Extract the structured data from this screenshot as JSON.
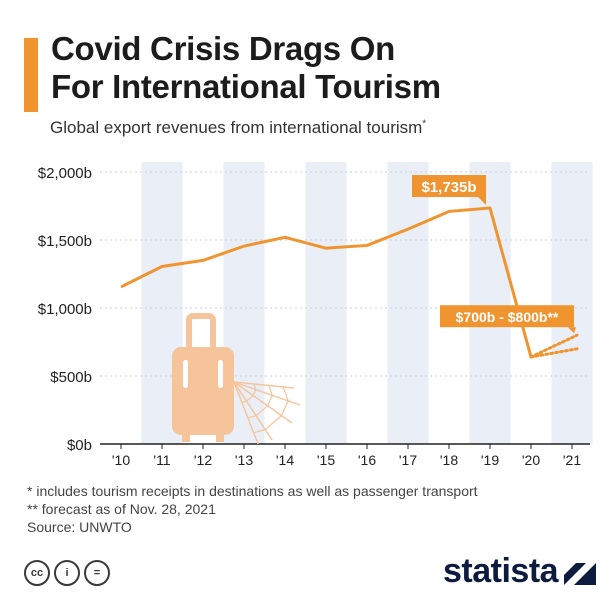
{
  "header": {
    "title_line1": "Covid Crisis Drags On",
    "title_line2": "For International Tourism",
    "subtitle": "Global export revenues from international tourism",
    "subtitle_mark": "*"
  },
  "notes": {
    "note1": "*   includes tourism receipts in destinations as well as passenger transport",
    "note2": "** forecast as of Nov. 28, 2021",
    "source": "Source: UNWTO"
  },
  "branding": {
    "license_icons": [
      "cc-icon",
      "by-icon",
      "nd-icon"
    ],
    "license_labels": [
      "cc",
      "i",
      "="
    ],
    "logo_text": "statista"
  },
  "chart_data": {
    "type": "line",
    "title": "Covid Crisis Drags On For International Tourism",
    "subtitle": "Global export revenues from international tourism*",
    "x": [
      "'10",
      "'11",
      "'12",
      "'13",
      "'14",
      "'15",
      "'16",
      "'17",
      "'18",
      "'19",
      "'20",
      "'21"
    ],
    "series": [
      {
        "values": [
          1155,
          1305,
          1350,
          1455,
          1520,
          1440,
          1460,
          1580,
          1710,
          1735,
          640,
          null
        ]
      }
    ],
    "forecast": {
      "label": "$700b - $800b**",
      "from": {
        "x": "'20",
        "value": 640
      },
      "low": {
        "x": "'21",
        "value": 700
      },
      "high": {
        "x": "'21",
        "value": 800
      }
    },
    "annotations": [
      {
        "x": "'19",
        "value": 1735,
        "text": "$1,735b"
      }
    ],
    "yticks": [
      0,
      500,
      1000,
      1500,
      2000
    ],
    "ytick_labels": [
      "$0b",
      "$500b",
      "$1,000b",
      "$1,500b",
      "$2,000b"
    ],
    "ylim": [
      0,
      2000
    ],
    "xlabel": "",
    "ylabel": "",
    "grid": true,
    "colors": {
      "line": "#f0942f",
      "band": "#eaeef6",
      "accent": "#f0942f",
      "axis": "#222222"
    }
  }
}
